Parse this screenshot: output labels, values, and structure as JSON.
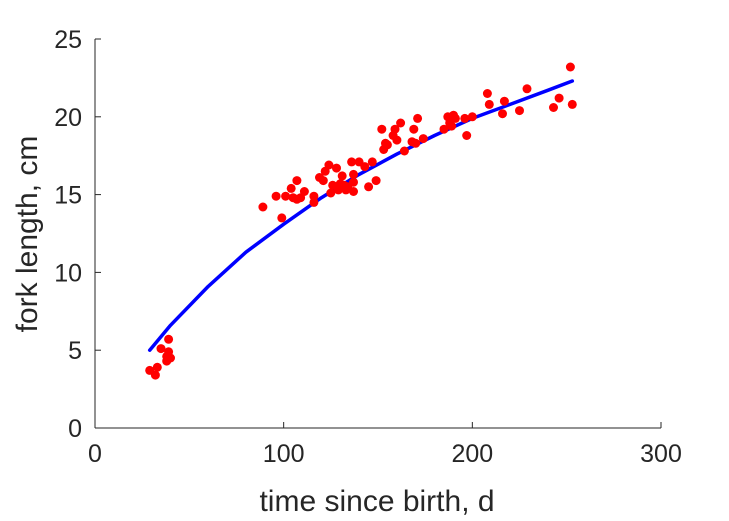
{
  "chart_data": {
    "type": "scatter",
    "title": "",
    "xlabel": "time since birth, d",
    "ylabel": "fork length, cm",
    "xlim": [
      0,
      300
    ],
    "ylim": [
      0,
      25
    ],
    "xticks": [
      0,
      100,
      200,
      300
    ],
    "yticks": [
      0,
      5,
      10,
      15,
      20,
      25
    ],
    "grid": false,
    "legend": "none",
    "colors": {
      "points": "#ff0000",
      "fit": "#0000ff",
      "axis": "#262626"
    },
    "series": [
      {
        "type": "scatter",
        "x": [
          29,
          32,
          33,
          35,
          38,
          38,
          39,
          39,
          40,
          89,
          96,
          99,
          101,
          104,
          105,
          107,
          107,
          109,
          111,
          116,
          116,
          119,
          121,
          122,
          124,
          125,
          126,
          128,
          129,
          130,
          131,
          132,
          133,
          134,
          136,
          137,
          137,
          137,
          140,
          143,
          145,
          147,
          149,
          152,
          153,
          154,
          155,
          158,
          159,
          160,
          162,
          164,
          168,
          169,
          170,
          171,
          174,
          185,
          187,
          188,
          189,
          190,
          191,
          196,
          197,
          200,
          208,
          209,
          216,
          217,
          225,
          229,
          243,
          246,
          252,
          253
        ],
        "y": [
          3.7,
          3.4,
          3.9,
          5.1,
          4.3,
          4.6,
          4.9,
          5.7,
          4.5,
          14.2,
          14.9,
          13.5,
          14.9,
          15.4,
          14.8,
          15.9,
          14.7,
          14.8,
          15.2,
          14.9,
          14.5,
          16.1,
          15.9,
          16.5,
          16.9,
          15.1,
          15.6,
          16.7,
          15.3,
          15.7,
          16.2,
          15.6,
          15.3,
          15.5,
          17.1,
          15.2,
          15.8,
          16.3,
          17.1,
          16.8,
          15.5,
          17.1,
          15.9,
          19.2,
          17.9,
          18.3,
          18.2,
          18.8,
          19.2,
          18.5,
          19.6,
          17.8,
          18.4,
          19.2,
          18.3,
          19.9,
          18.6,
          19.2,
          20.0,
          19.6,
          19.4,
          20.1,
          19.9,
          19.9,
          18.8,
          20.0,
          21.5,
          20.8,
          20.2,
          21.0,
          20.4,
          21.8,
          20.6,
          21.2,
          23.2,
          20.8
        ]
      },
      {
        "type": "line",
        "x": [
          29,
          40,
          60,
          80,
          100,
          120,
          140,
          160,
          180,
          200,
          220,
          240,
          253
        ],
        "y": [
          5.0,
          6.6,
          9.1,
          11.3,
          13.1,
          14.8,
          16.3,
          17.6,
          18.8,
          19.9,
          20.8,
          21.7,
          22.3
        ]
      }
    ]
  }
}
